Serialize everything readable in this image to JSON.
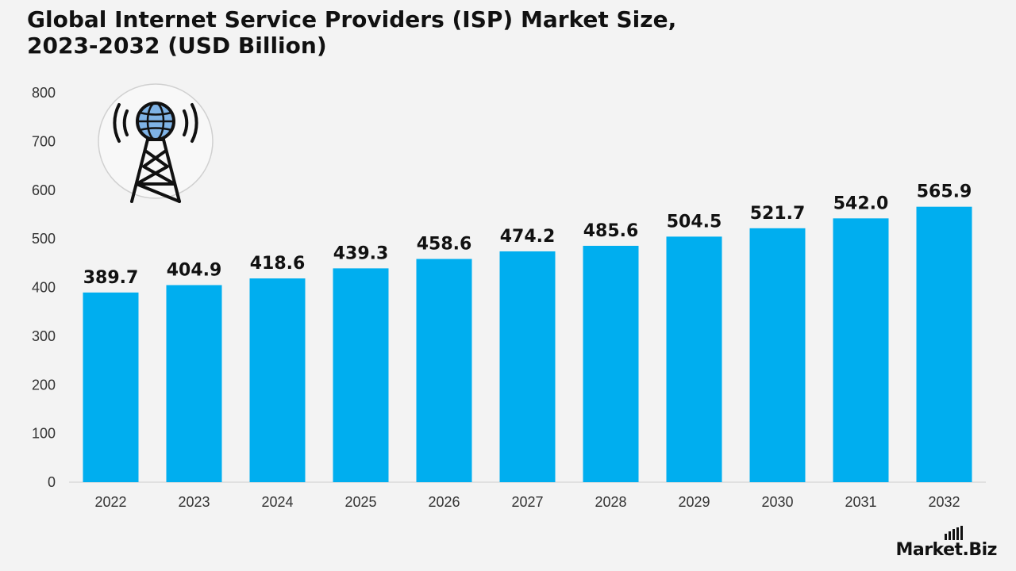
{
  "title_line1": "Global Internet Service Providers (ISP) Market Size,",
  "title_line2": "2023-2032 (USD Billion)",
  "brand": "Market.Biz",
  "colors": {
    "bar": "#00aeef",
    "axis": "#cccccc",
    "text": "#111111",
    "tick": "#333333"
  },
  "chart_data": {
    "type": "bar",
    "categories": [
      "2022",
      "2023",
      "2024",
      "2025",
      "2026",
      "2027",
      "2028",
      "2029",
      "2030",
      "2031",
      "2032"
    ],
    "values": [
      389.7,
      404.9,
      418.6,
      439.3,
      458.6,
      474.2,
      485.6,
      504.5,
      521.7,
      542.0,
      565.9
    ],
    "data_labels": [
      "389.7",
      "404.9",
      "418.6",
      "439.3",
      "458.6",
      "474.2",
      "485.6",
      "504.5",
      "521.7",
      "542.0",
      "565.9"
    ],
    "yticks": [
      0,
      100,
      200,
      300,
      400,
      500,
      600,
      700,
      800
    ],
    "ylim": [
      0,
      800
    ],
    "grid": false,
    "legend": "none",
    "icon": "radio-tower-globe-icon"
  }
}
